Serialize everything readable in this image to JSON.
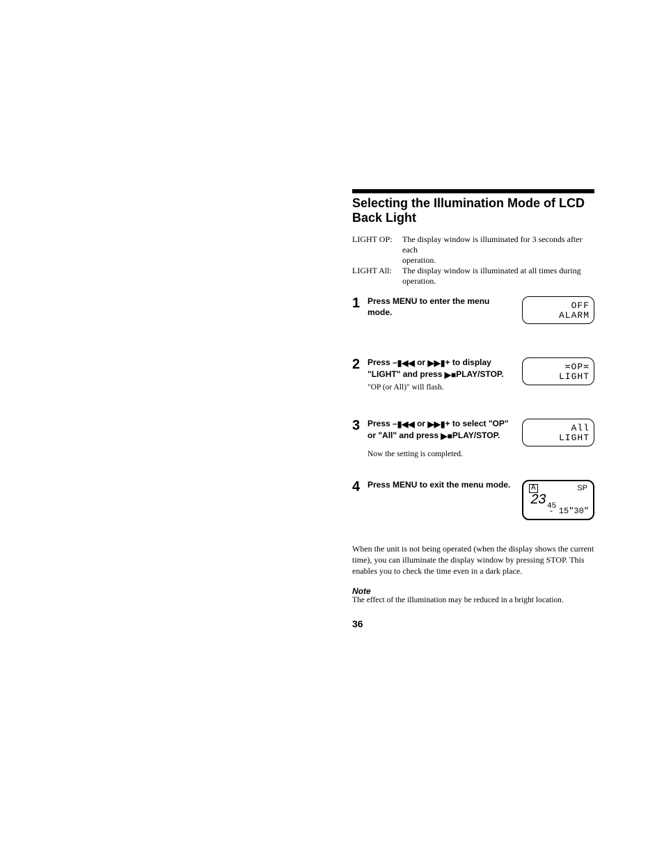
{
  "title": "Selecting the Illumination Mode of LCD Back Light",
  "intro": {
    "op_label": "LIGHT OP:",
    "op_text1": "The display window is illuminated for 3 seconds after each",
    "op_text2": "operation.",
    "all_label": "LIGHT All:",
    "all_text1": "The display window is illuminated at all times during",
    "all_text2": "operation."
  },
  "steps": [
    {
      "num": "1",
      "bold": "Press MENU to enter the menu mode.",
      "sub": "",
      "extra": "",
      "lcd": {
        "r1": "OFF",
        "r2": "ALARM"
      }
    },
    {
      "num": "2",
      "bold_pre": "Press –",
      "bold_mid": " or ",
      "bold_post": "+ to display \"LIGHT\" and press ",
      "bold_end": "PLAY/STOP.",
      "sub": "\"OP (or All)\" will flash.",
      "extra": "",
      "lcd": {
        "r1": "≍OP≍",
        "r2": "LIGHT"
      }
    },
    {
      "num": "3",
      "bold_pre": "Press –",
      "bold_mid": " or ",
      "bold_post": "+ to select \"OP\" or \"All\" and press ",
      "bold_end": "PLAY/STOP.",
      "sub": "",
      "extra": "Now the setting is completed.",
      "lcd": {
        "r1": "All",
        "r2": "LIGHT"
      }
    },
    {
      "num": "4",
      "bold": "Press MENU to exit the menu mode.",
      "sub": "",
      "extra": "",
      "lcd4": {
        "corner": "A",
        "sp": "SP",
        "big": "23",
        "small": "45",
        "time": "- 15\"30\""
      }
    }
  ],
  "footnote": "When the unit is not being operated (when the display shows the current time), you can illuminate the display window by pressing STOP. This enables you to check the time even in a dark place.",
  "note_head": "Note",
  "note_body": "The effect of the illumination may be reduced in a bright location.",
  "pagenum": "36",
  "icons": {
    "prev": "▮◀◀",
    "next": "▶▶▮",
    "playstop": "▶■"
  }
}
